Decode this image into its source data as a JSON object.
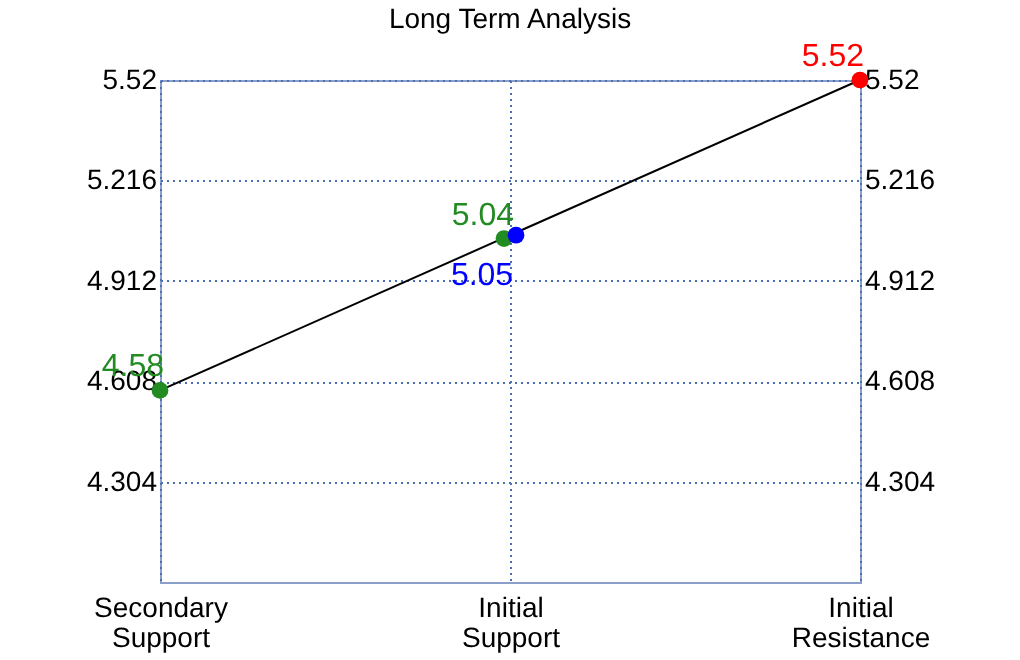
{
  "chart_data": {
    "type": "line",
    "title": "Long Term Analysis",
    "categories": [
      "Secondary Support",
      "Initial Support",
      "Initial Resistance"
    ],
    "series": [
      {
        "color": "#000000",
        "values": [
          4.58,
          5.05,
          5.52
        ]
      },
      {
        "type": "scatter",
        "color": "#228b22",
        "values": [
          4.58,
          5.04,
          null
        ],
        "value_labels": [
          "4.58",
          "5.04",
          null
        ]
      },
      {
        "type": "scatter",
        "color": "#0000ff",
        "values": [
          null,
          5.05,
          null
        ],
        "value_labels": [
          null,
          "5.05",
          null
        ]
      },
      {
        "type": "scatter",
        "color": "#ff0000",
        "values": [
          null,
          null,
          5.52
        ],
        "value_labels": [
          null,
          null,
          "5.52"
        ]
      }
    ],
    "ylim": [
      4.0,
      5.52
    ],
    "yticks": [
      {
        "value": 4.304,
        "label": "4.304"
      },
      {
        "value": 4.608,
        "label": "4.608"
      },
      {
        "value": 4.912,
        "label": "4.912"
      },
      {
        "value": 5.216,
        "label": "5.216"
      },
      {
        "value": 5.52,
        "label": "5.52"
      }
    ],
    "y2lim": [
      4.0,
      5.52
    ],
    "y2ticks": [
      {
        "value": 4.304,
        "label": "4.304"
      },
      {
        "value": 4.608,
        "label": "4.608"
      },
      {
        "value": 4.912,
        "label": "4.912"
      },
      {
        "value": 5.216,
        "label": "5.216"
      },
      {
        "value": 5.52,
        "label": "5.52"
      }
    ],
    "grid": true
  }
}
